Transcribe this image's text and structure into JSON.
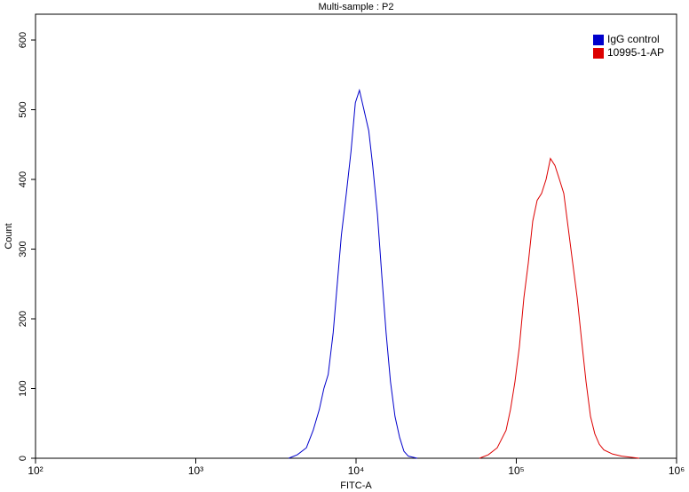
{
  "chart_data": {
    "type": "line",
    "title": "Multi-sample : P2",
    "x_label": "FITC-A",
    "y_label": "Count",
    "x_scale": "log",
    "xlim": [
      100,
      1000000
    ],
    "xticks": [
      {
        "value": 100,
        "label": "10²"
      },
      {
        "value": 1000,
        "label": "10³"
      },
      {
        "value": 10000,
        "label": "10⁴"
      },
      {
        "value": 100000,
        "label": "10⁵"
      },
      {
        "value": 1000000,
        "label": "10⁶"
      }
    ],
    "ylim": [
      0,
      637
    ],
    "yticks": [
      0,
      100,
      200,
      300,
      400,
      500,
      600
    ],
    "legend": "upper right",
    "series": [
      {
        "name": "IgG control",
        "color": "#0000cc",
        "x": [
          3800,
          4300,
          4900,
          5400,
          5900,
          6300,
          6700,
          7200,
          7700,
          8100,
          8700,
          9300,
          9900,
          10500,
          11200,
          12000,
          12700,
          13600,
          14500,
          15400,
          16400,
          17500,
          18700,
          19900,
          21200,
          24100
        ],
        "values": [
          0,
          5,
          15,
          40,
          70,
          100,
          120,
          180,
          260,
          320,
          380,
          440,
          510,
          528,
          500,
          470,
          420,
          350,
          260,
          180,
          110,
          60,
          30,
          10,
          3,
          0
        ]
      },
      {
        "name": "10995-1-AP",
        "color": "#dd0000",
        "x": [
          58900,
          66900,
          76000,
          86300,
          92000,
          98100,
          104500,
          111500,
          118800,
          126600,
          134900,
          143800,
          153400,
          163300,
          174200,
          185800,
          197800,
          210900,
          224900,
          239900,
          255300,
          272300,
          290400,
          309000,
          329600,
          351600,
          399000,
          453900,
          584800
        ],
        "values": [
          0,
          5,
          15,
          40,
          70,
          110,
          160,
          230,
          280,
          340,
          370,
          380,
          400,
          430,
          420,
          400,
          380,
          330,
          280,
          230,
          170,
          110,
          60,
          35,
          20,
          12,
          6,
          3,
          0
        ]
      }
    ]
  }
}
